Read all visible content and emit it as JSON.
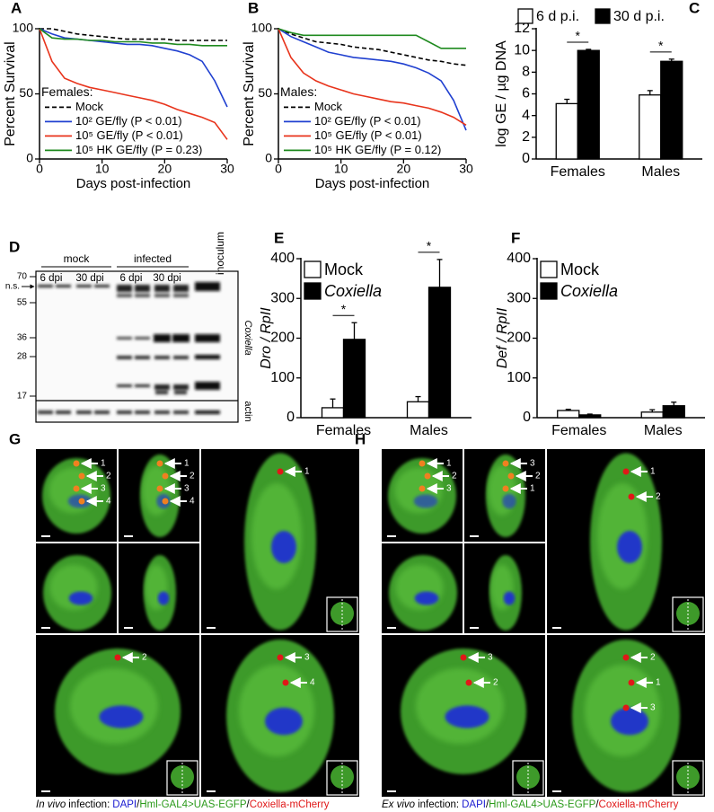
{
  "chart_data": [
    {
      "type": "line",
      "panel": "A",
      "ylabel": "Percent Survival",
      "xlabel": "Days post-infection",
      "x": [
        0,
        2,
        4,
        6,
        8,
        10,
        12,
        14,
        16,
        18,
        20,
        22,
        24,
        26,
        28,
        30
      ],
      "xlim": [
        0,
        30
      ],
      "xticks": [
        0,
        10,
        20,
        30
      ],
      "ylim": [
        0,
        100
      ],
      "yticks": [
        0,
        50,
        100
      ],
      "legend_title": "Females:",
      "legend": "lower left",
      "series": [
        {
          "name": "Mock",
          "color": "#000000",
          "linestyle": "dashed",
          "values": [
            100,
            100,
            98,
            96,
            95,
            94,
            93,
            92,
            92,
            92,
            92,
            91,
            91,
            91,
            91,
            91
          ]
        },
        {
          "name": "10² GE/fly (P < 0.01)",
          "color": "#2040d0",
          "linestyle": "solid",
          "values": [
            100,
            96,
            93,
            92,
            91,
            90,
            89,
            88,
            88,
            87,
            85,
            83,
            80,
            75,
            60,
            40
          ]
        },
        {
          "name": "10⁵ GE/fly (P < 0.01)",
          "color": "#e8341c",
          "linestyle": "solid",
          "values": [
            100,
            75,
            62,
            58,
            55,
            53,
            51,
            49,
            47,
            45,
            42,
            38,
            35,
            32,
            28,
            15
          ]
        },
        {
          "name": "10⁵ HK GE/fly (P = 0.23)",
          "color": "#1f8a1f",
          "linestyle": "solid",
          "values": [
            100,
            93,
            92,
            92,
            91,
            91,
            90,
            90,
            90,
            89,
            89,
            88,
            88,
            87,
            87,
            87
          ]
        }
      ]
    },
    {
      "type": "line",
      "panel": "B",
      "ylabel": "Percent Survival",
      "xlabel": "Days post-infection",
      "x": [
        0,
        2,
        4,
        6,
        8,
        10,
        12,
        14,
        16,
        18,
        20,
        22,
        24,
        26,
        28,
        30
      ],
      "xlim": [
        0,
        30
      ],
      "xticks": [
        0,
        10,
        20,
        30
      ],
      "ylim": [
        0,
        100
      ],
      "yticks": [
        0,
        50,
        100
      ],
      "legend_title": "Males:",
      "legend": "lower left",
      "series": [
        {
          "name": "Mock",
          "color": "#000000",
          "linestyle": "dashed",
          "values": [
            100,
            96,
            93,
            90,
            89,
            88,
            86,
            85,
            84,
            82,
            80,
            78,
            76,
            75,
            73,
            72
          ]
        },
        {
          "name": "10² GE/fly (P < 0.01)",
          "color": "#2040d0",
          "linestyle": "solid",
          "values": [
            100,
            94,
            90,
            86,
            82,
            80,
            78,
            77,
            76,
            75,
            73,
            70,
            66,
            60,
            45,
            22
          ]
        },
        {
          "name": "10⁵ GE/fly (P < 0.01)",
          "color": "#e8341c",
          "linestyle": "solid",
          "values": [
            100,
            78,
            66,
            60,
            56,
            53,
            50,
            48,
            46,
            44,
            43,
            41,
            39,
            36,
            32,
            26
          ]
        },
        {
          "name": "10⁵ HK GE/fly (P = 0.12)",
          "color": "#1f8a1f",
          "linestyle": "solid",
          "values": [
            100,
            97,
            95,
            95,
            95,
            95,
            95,
            95,
            95,
            95,
            95,
            95,
            90,
            85,
            85,
            85
          ]
        }
      ]
    },
    {
      "type": "bar",
      "panel": "C",
      "ylabel": "log GE / µg DNA",
      "categories": [
        "Females",
        "Males"
      ],
      "ylim": [
        0,
        12
      ],
      "yticks": [
        0,
        2,
        4,
        6,
        8,
        10,
        12
      ],
      "legend": "top",
      "series": [
        {
          "name": "6 d p.i.",
          "color": "#ffffff",
          "values": [
            5.1,
            5.9
          ],
          "errors": [
            0.4,
            0.4
          ]
        },
        {
          "name": "30 d p.i.",
          "color": "#000000",
          "values": [
            10.0,
            9.0
          ],
          "errors": [
            0.1,
            0.2
          ]
        }
      ],
      "annotations": [
        "*",
        "*"
      ]
    },
    {
      "type": "bar",
      "panel": "E",
      "ylabel": "Dro / RpII",
      "categories": [
        "Females",
        "Males"
      ],
      "ylim": [
        0,
        400
      ],
      "yticks": [
        0,
        100,
        200,
        300,
        400
      ],
      "legend": "upper left",
      "series": [
        {
          "name": "Mock",
          "color": "#ffffff",
          "values": [
            25,
            40
          ],
          "errors": [
            22,
            13
          ]
        },
        {
          "name": "Coxiella",
          "color": "#000000",
          "values": [
            197,
            328
          ],
          "errors": [
            42,
            70
          ]
        }
      ],
      "annotations": [
        "*",
        "*"
      ]
    },
    {
      "type": "bar",
      "panel": "F",
      "ylabel": "Def / RpII",
      "categories": [
        "Females",
        "Males"
      ],
      "ylim": [
        0,
        400
      ],
      "yticks": [
        0,
        100,
        200,
        300,
        400
      ],
      "legend": "upper left",
      "series": [
        {
          "name": "Mock",
          "color": "#ffffff",
          "values": [
            18,
            14
          ],
          "errors": [
            3,
            6
          ]
        },
        {
          "name": "Coxiella",
          "color": "#000000",
          "values": [
            7,
            30
          ],
          "errors": [
            2,
            9
          ]
        }
      ]
    }
  ],
  "blot": {
    "panel": "D",
    "groups": [
      "mock",
      "infected",
      "inoculum"
    ],
    "lanes": [
      "6 dpi",
      "30 dpi",
      "6 dpi",
      "30 dpi"
    ],
    "markers": [
      "70",
      "n.s.",
      "55",
      "36",
      "28",
      "17"
    ],
    "right_labels": [
      "Coxiella",
      "actin"
    ]
  },
  "microscopy": [
    {
      "panel": "G",
      "tiles": [
        {
          "arrows": [
            "1",
            "2",
            "3",
            "4"
          ]
        },
        {
          "arrows": [
            "1",
            "2",
            "3",
            "4"
          ]
        },
        {
          "arrows": []
        },
        {
          "arrows": []
        },
        {
          "arrows": [
            "1"
          ]
        },
        {
          "arrows": [
            "2"
          ]
        },
        {
          "arrows": [
            "3",
            "4"
          ]
        }
      ],
      "caption": [
        "In vivo",
        "infection:",
        "DAPI",
        "/",
        "Hml-GAL4>UAS-EGFP",
        "/",
        "Coxiella-mCherry"
      ]
    },
    {
      "panel": "H",
      "tiles": [
        {
          "arrows": [
            "1",
            "2",
            "3"
          ]
        },
        {
          "arrows": [
            "3",
            "2",
            "1"
          ]
        },
        {
          "arrows": []
        },
        {
          "arrows": []
        },
        {
          "arrows": [
            "1",
            "2"
          ]
        },
        {
          "arrows": [
            "3",
            "2"
          ]
        },
        {
          "arrows": [
            "2",
            "1",
            "3"
          ]
        }
      ],
      "caption": [
        "Ex vivo",
        "infection:",
        "DAPI",
        "/",
        "Hml-GAL4>UAS-EGFP",
        "/",
        "Coxiella-mCherry"
      ]
    }
  ]
}
